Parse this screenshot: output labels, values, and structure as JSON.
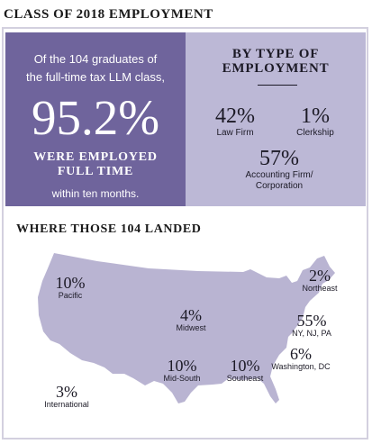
{
  "title": "CLASS OF 2018 EMPLOYMENT",
  "headline": {
    "intro_line1": "Of the 104 graduates of",
    "intro_line2": "the full-time tax LLM class,",
    "percent": "95.2%",
    "employed_line1": "WERE EMPLOYED",
    "employed_line2": "FULL TIME",
    "within": "within ten months."
  },
  "by_type": {
    "heading_line1": "BY TYPE OF",
    "heading_line2": "EMPLOYMENT",
    "items": [
      {
        "value": "42%",
        "label": "Law Firm"
      },
      {
        "value": "1%",
        "label": "Clerkship"
      },
      {
        "value": "57%",
        "label_line1": "Accounting Firm/",
        "label_line2": "Corporation"
      }
    ]
  },
  "where": {
    "heading": "WHERE THOSE 104 LANDED",
    "regions": [
      {
        "value": "10%",
        "label": "Pacific"
      },
      {
        "value": "4%",
        "label": "Midwest"
      },
      {
        "value": "10%",
        "label": "Mid-South"
      },
      {
        "value": "10%",
        "label": "Southeast"
      },
      {
        "value": "2%",
        "label": "Northeast"
      },
      {
        "value": "55%",
        "label": "NY, NJ, PA"
      },
      {
        "value": "6%",
        "label": "Washington, DC"
      },
      {
        "value": "3%",
        "label": "International"
      }
    ]
  },
  "colors": {
    "dark_purple": "#6f649c",
    "light_purple": "#bcb8d6",
    "map_fill": "#b9b4d2"
  },
  "chart_data": [
    {
      "type": "table",
      "title": "BY TYPE OF EMPLOYMENT",
      "categories": [
        "Law Firm",
        "Clerkship",
        "Accounting Firm/Corporation"
      ],
      "values": [
        42,
        1,
        57
      ],
      "unit": "%"
    },
    {
      "type": "table",
      "title": "WHERE THOSE 104 LANDED",
      "categories": [
        "Pacific",
        "Midwest",
        "Mid-South",
        "Southeast",
        "Northeast",
        "NY, NJ, PA",
        "Washington, DC",
        "International"
      ],
      "values": [
        10,
        4,
        10,
        10,
        2,
        55,
        6,
        3
      ],
      "unit": "%"
    }
  ]
}
